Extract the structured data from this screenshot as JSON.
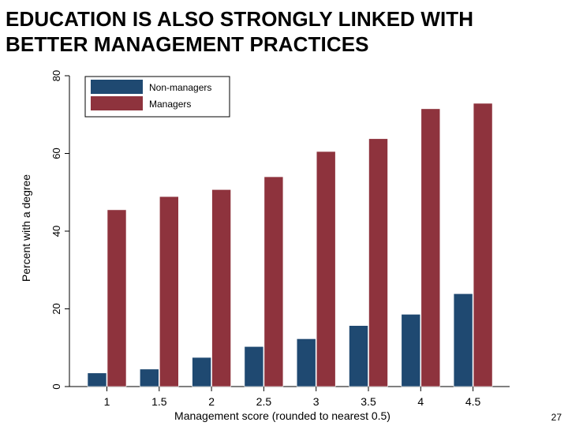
{
  "slide": {
    "title": "EDUCATION IS ALSO STRONGLY LINKED WITH BETTER MANAGEMENT PRACTICES",
    "page_number": "27"
  },
  "colors": {
    "non_managers": "#1f4971",
    "managers": "#8e333d",
    "axis": "#000000",
    "legend_border": "#000000"
  },
  "chart_data": {
    "type": "bar",
    "title": "",
    "xlabel": "Management score (rounded to nearest 0.5)",
    "ylabel": "Percent with a degree",
    "categories": [
      "1",
      "1.5",
      "2",
      "2.5",
      "3",
      "3.5",
      "4",
      "4.5"
    ],
    "series": [
      {
        "name": "Non-managers",
        "color": "#1f4971",
        "values": [
          3.5,
          4.5,
          7.5,
          10.3,
          12.3,
          15.7,
          18.6,
          23.9
        ]
      },
      {
        "name": "Managers",
        "color": "#8e333d",
        "values": [
          45.5,
          48.9,
          50.7,
          54.0,
          60.5,
          63.8,
          71.5,
          72.9
        ]
      }
    ],
    "ylim": [
      0,
      80
    ],
    "yticks": [
      0,
      20,
      40,
      60,
      80
    ],
    "grid": false,
    "legend_position": "top-left"
  }
}
